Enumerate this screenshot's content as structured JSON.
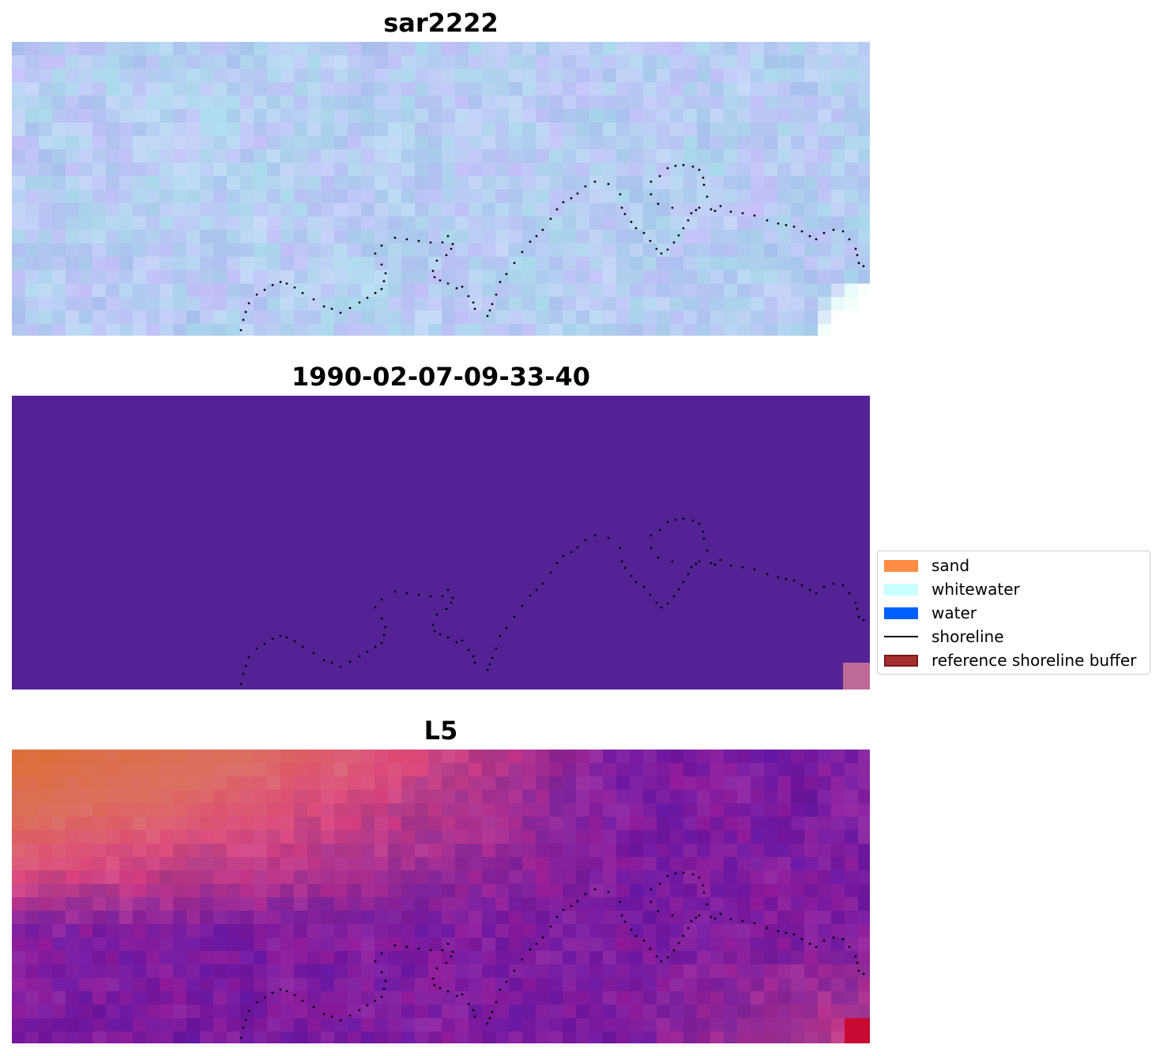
{
  "panels": [
    {
      "title": "sar2222",
      "style": "sar"
    },
    {
      "title": "1990-02-07-09-33-40",
      "style": "class"
    },
    {
      "title": "L5",
      "style": "rgb"
    }
  ],
  "legend": {
    "placement": "right-middle",
    "items": [
      {
        "label": "sand",
        "kind": "patch",
        "color": "#ff8c42"
      },
      {
        "label": "whitewater",
        "kind": "patch",
        "color": "#c8ffff"
      },
      {
        "label": "water",
        "kind": "patch",
        "color": "#0060ff"
      },
      {
        "label": "shoreline",
        "kind": "line",
        "color": "#000000"
      },
      {
        "label": "reference shoreline buffer",
        "kind": "patch",
        "color": "#a3302f",
        "edge": "#7a1616"
      }
    ]
  },
  "colors": {
    "class_background": "#532396",
    "sar_base": "#b4c8ee",
    "rgb_base": "#7a2aa0"
  }
}
